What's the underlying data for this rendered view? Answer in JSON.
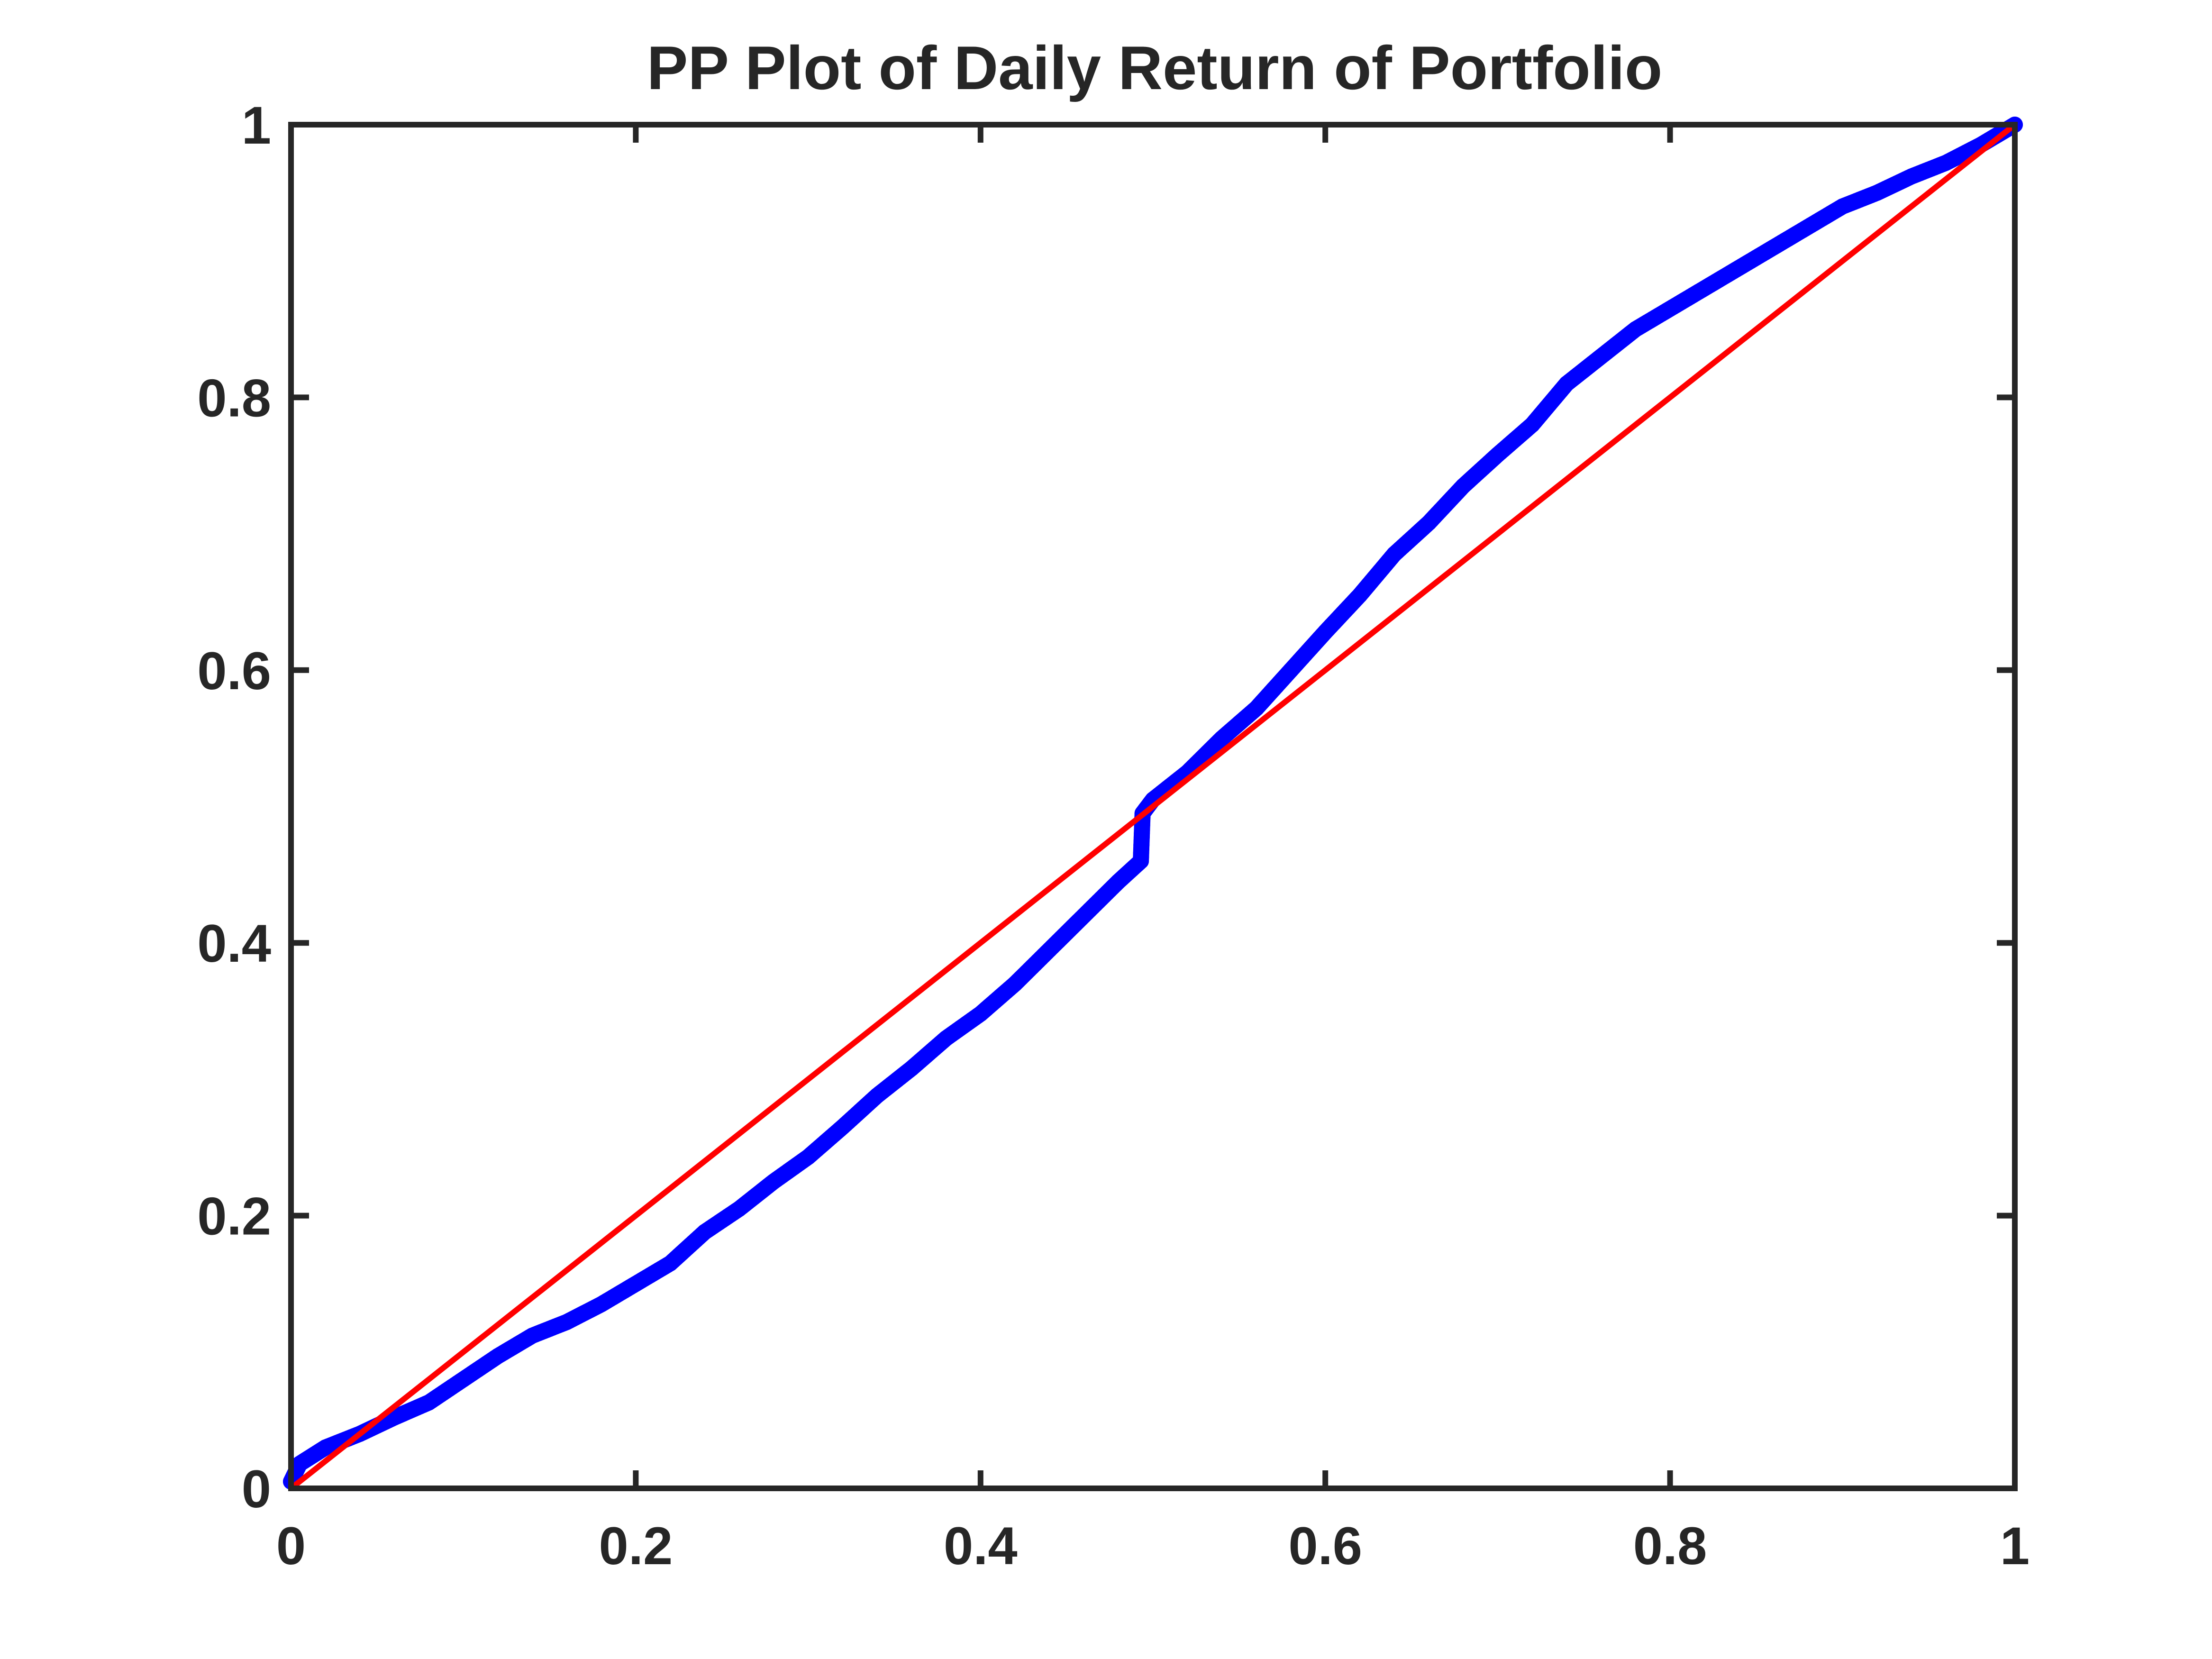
{
  "chart_data": {
    "type": "scatter",
    "title": "PP Plot of Daily Return of Portfolio",
    "xlabel": "",
    "ylabel": "",
    "xlim": [
      0,
      1
    ],
    "ylim": [
      0,
      1
    ],
    "xticks": [
      0,
      0.2,
      0.4,
      0.6,
      0.8,
      1
    ],
    "yticks": [
      0,
      0.2,
      0.4,
      0.6,
      0.8,
      1
    ],
    "xtick_labels": [
      "0",
      "0.2",
      "0.4",
      "0.6",
      "0.8",
      "1"
    ],
    "ytick_labels": [
      "0",
      "0.2",
      "0.4",
      "0.6",
      "0.8",
      "1"
    ],
    "grid": false,
    "series": [
      {
        "kind": "points",
        "color": "#0000ff",
        "x": [
          0.0,
          0.005,
          0.02,
          0.04,
          0.06,
          0.08,
          0.1,
          0.12,
          0.14,
          0.16,
          0.18,
          0.2,
          0.22,
          0.24,
          0.26,
          0.28,
          0.3,
          0.32,
          0.34,
          0.36,
          0.38,
          0.4,
          0.42,
          0.44,
          0.46,
          0.48,
          0.493,
          0.494,
          0.5,
          0.52,
          0.54,
          0.56,
          0.58,
          0.6,
          0.62,
          0.64,
          0.66,
          0.68,
          0.7,
          0.72,
          0.74,
          0.76,
          0.78,
          0.8,
          0.82,
          0.84,
          0.86,
          0.88,
          0.9,
          0.92,
          0.94,
          0.96,
          0.98,
          1.0
        ],
        "y": [
          0.005,
          0.018,
          0.03,
          0.04,
          0.052,
          0.063,
          0.08,
          0.097,
          0.112,
          0.122,
          0.135,
          0.15,
          0.165,
          0.188,
          0.205,
          0.225,
          0.243,
          0.265,
          0.288,
          0.308,
          0.33,
          0.348,
          0.37,
          0.395,
          0.42,
          0.445,
          0.46,
          0.495,
          0.505,
          0.525,
          0.55,
          0.572,
          0.6,
          0.628,
          0.655,
          0.685,
          0.708,
          0.735,
          0.758,
          0.78,
          0.81,
          0.83,
          0.85,
          0.865,
          0.88,
          0.895,
          0.91,
          0.925,
          0.94,
          0.95,
          0.962,
          0.972,
          0.985,
          1.0
        ]
      },
      {
        "kind": "reference-line",
        "color": "#ff0000",
        "x": [
          0,
          1
        ],
        "y": [
          0,
          1
        ]
      }
    ]
  }
}
